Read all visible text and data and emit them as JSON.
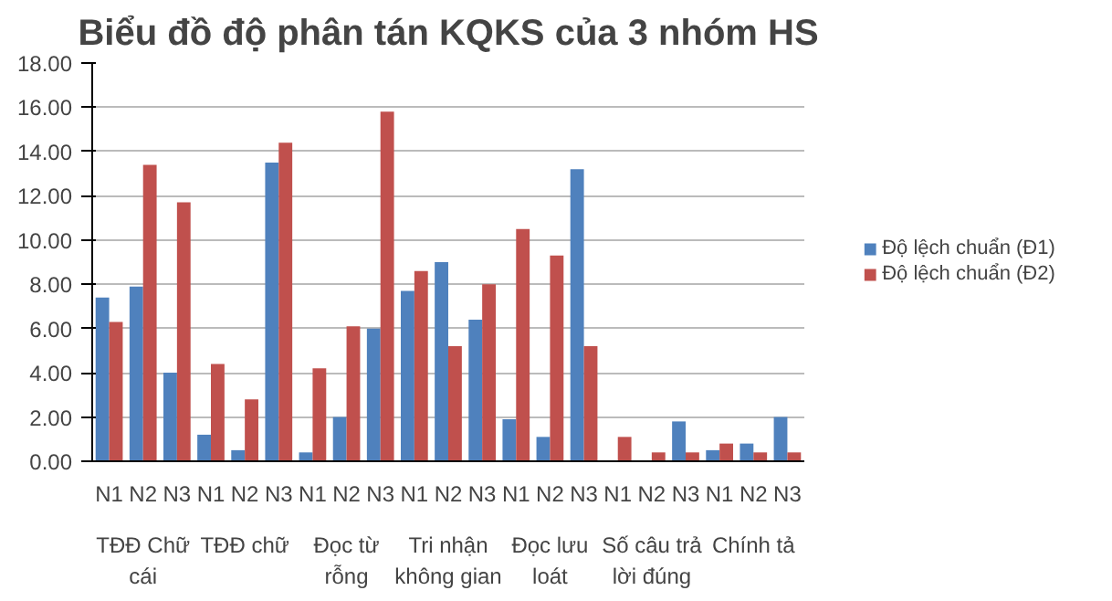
{
  "chart_data": {
    "type": "bar",
    "title": "Biểu đồ độ phân tán KQKS của 3 nhóm HS",
    "categories": [
      "N1",
      "N2",
      "N3",
      "N1",
      "N2",
      "N3",
      "N1",
      "N2",
      "N3",
      "N1",
      "N2",
      "N3",
      "N1",
      "N2",
      "N3",
      "N1",
      "N2",
      "N3",
      "N1",
      "N2",
      "N3"
    ],
    "series": [
      {
        "name": "Độ lệch chuẩn (Đ1)",
        "color": "#4f81bd",
        "values": [
          7.4,
          7.9,
          4.0,
          1.2,
          0.5,
          13.5,
          0.4,
          2.0,
          6.0,
          7.7,
          9.0,
          6.4,
          1.9,
          1.1,
          13.2,
          0,
          0,
          1.8,
          0.5,
          0.8,
          2.0
        ]
      },
      {
        "name": "Độ lệch chuẩn (Đ2)",
        "color": "#c0504d",
        "values": [
          6.3,
          13.4,
          11.7,
          4.4,
          2.8,
          14.4,
          4.2,
          6.1,
          15.8,
          8.6,
          5.2,
          8.0,
          10.5,
          9.3,
          5.2,
          1.1,
          0.4,
          0.4,
          0.8,
          0.4,
          0.4
        ]
      }
    ],
    "annotations": [
      "TĐĐ Chữ cái",
      "TĐĐ chữ",
      "Đọc từ rỗng",
      "Tri nhận không gian",
      "Đọc lưu loát",
      "Số câu trả lời đúng",
      "Chính tả"
    ],
    "ylim": [
      0,
      18
    ],
    "yticks": [
      {
        "value": 0,
        "label": "0.00"
      },
      {
        "value": 2,
        "label": "2.00"
      },
      {
        "value": 4,
        "label": "4.00"
      },
      {
        "value": 6,
        "label": "6.00"
      },
      {
        "value": 8,
        "label": "8.00"
      },
      {
        "value": 10,
        "label": "10.00"
      },
      {
        "value": 12,
        "label": "12.00"
      },
      {
        "value": 14,
        "label": "14.00"
      },
      {
        "value": 16,
        "label": "16.00"
      },
      {
        "value": 18,
        "label": "18.00"
      }
    ],
    "grid": "y",
    "legend": "right"
  }
}
